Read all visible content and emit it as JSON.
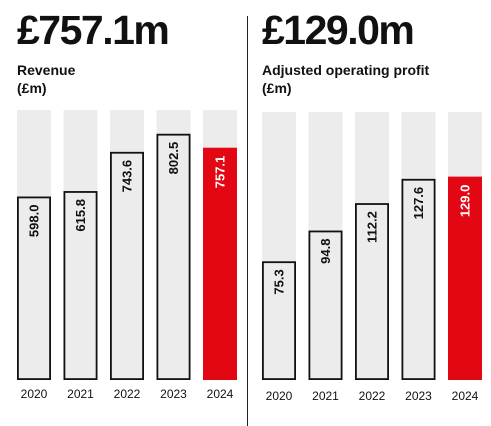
{
  "chart_data": [
    {
      "type": "bar",
      "headline": "£757.1m",
      "title_line1": "Revenue",
      "title_line2": "(£m)",
      "categories": [
        "2020",
        "2021",
        "2022",
        "2023",
        "2024"
      ],
      "values": [
        598.0,
        615.8,
        743.6,
        802.5,
        757.1
      ],
      "value_labels": [
        "598.0",
        "615.8",
        "743.6",
        "802.5",
        "757.1"
      ],
      "ylim": [
        0,
        880
      ],
      "grid": false,
      "colors": {
        "track": "#ececec",
        "bar_fill": "#ececec",
        "bar_outline": "#111111",
        "highlight": "#e30613",
        "highlight_label": "#ffffff",
        "label": "#111111"
      },
      "highlight_index": 4
    },
    {
      "type": "bar",
      "headline": "£129.0m",
      "title_line1": "Adjusted operating profit",
      "title_line2": "(£m)",
      "categories": [
        "2020",
        "2021",
        "2022",
        "2023",
        "2024"
      ],
      "values": [
        75.3,
        94.8,
        112.2,
        127.6,
        129.0
      ],
      "value_labels": [
        "75.3",
        "94.8",
        "112.2",
        "127.6",
        "129.0"
      ],
      "ylim": [
        0,
        170
      ],
      "grid": false,
      "colors": {
        "track": "#ececec",
        "bar_fill": "#ececec",
        "bar_outline": "#111111",
        "highlight": "#e30613",
        "highlight_label": "#ffffff",
        "label": "#111111"
      },
      "highlight_index": 4
    }
  ]
}
